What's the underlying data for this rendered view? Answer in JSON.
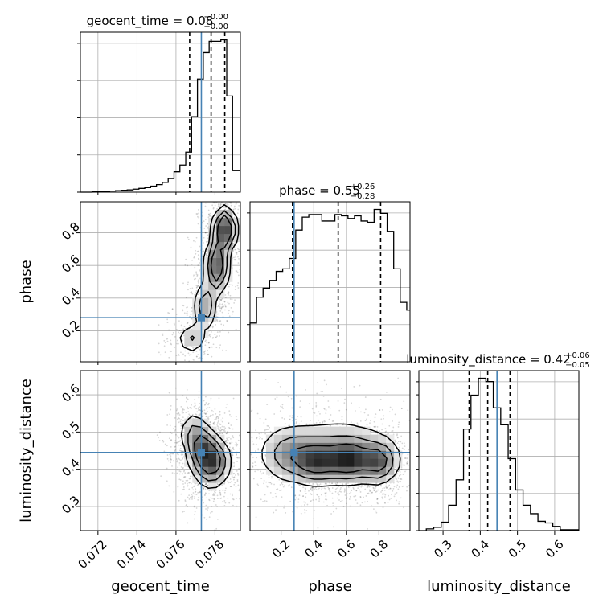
{
  "chart_data": {
    "type": "corner",
    "parameters": [
      "geocent_time",
      "phase",
      "luminosity_distance"
    ],
    "axis_labels": {
      "geocent_time": "geocent_time",
      "phase": "phase",
      "luminosity_distance": "luminosity_distance"
    },
    "ranges": {
      "geocent_time": [
        0.0711,
        0.0793
      ],
      "phase": [
        0.01,
        0.99
      ],
      "luminosity_distance": [
        0.235,
        0.665
      ]
    },
    "ticks": {
      "geocent_time": [
        "0.072",
        "0.074",
        "0.076",
        "0.078"
      ],
      "phase": [
        "0.2",
        "0.4",
        "0.6",
        "0.8"
      ],
      "luminosity_distance": [
        "0.3",
        "0.4",
        "0.5",
        "0.6"
      ]
    },
    "injection": {
      "geocent_time": 0.0773,
      "phase": 0.28,
      "luminosity_distance": 0.445
    },
    "colors": {
      "injection": "#4682b4",
      "histogram": "#000000",
      "grid": "#b0b0b0"
    },
    "grid": true,
    "titles": [
      {
        "param": "geocent_time",
        "label": "geocent_time = 0.08",
        "upper": "+0.00",
        "lower": "−0.00"
      },
      {
        "param": "phase",
        "label": "phase = 0.55",
        "upper": "+0.26",
        "lower": "−0.28"
      },
      {
        "param": "luminosity_distance",
        "label": "luminosity_distance = 0.42",
        "upper": "+0.06",
        "lower": "−0.05"
      }
    ],
    "quantiles": {
      "geocent_time": [
        0.0767,
        0.0778,
        0.0785
      ],
      "phase": [
        0.27,
        0.55,
        0.81
      ],
      "luminosity_distance": [
        0.37,
        0.42,
        0.48
      ]
    },
    "marginals": {
      "geocent_time": {
        "edges": [
          0.0711,
          0.0714,
          0.0717,
          0.072,
          0.0723,
          0.0726,
          0.0729,
          0.0732,
          0.0735,
          0.0738,
          0.0741,
          0.0744,
          0.0747,
          0.075,
          0.0753,
          0.0756,
          0.0759,
          0.0762,
          0.0765,
          0.0768,
          0.0771,
          0.0774,
          0.0777,
          0.078,
          0.0783,
          0.0786,
          0.0789,
          0.0793
        ],
        "counts": [
          0,
          0,
          1,
          1,
          2,
          3,
          4,
          5,
          6,
          8,
          10,
          12,
          16,
          20,
          26,
          36,
          54,
          72,
          106,
          200,
          300,
          370,
          400,
          400,
          404,
          255,
          57
        ]
      },
      "phase": {
        "edges": [
          0.01,
          0.05,
          0.09,
          0.13,
          0.17,
          0.21,
          0.25,
          0.29,
          0.33,
          0.37,
          0.41,
          0.45,
          0.49,
          0.53,
          0.57,
          0.61,
          0.65,
          0.69,
          0.73,
          0.77,
          0.81,
          0.85,
          0.89,
          0.93,
          0.97,
          0.99
        ],
        "counts": [
          30,
          50,
          57,
          63,
          70,
          72,
          80,
          102,
          112,
          114,
          114,
          109,
          109,
          114,
          113,
          111,
          113,
          109,
          108,
          118,
          115,
          101,
          72,
          46,
          40
        ]
      },
      "luminosity_distance": {
        "edges": [
          0.235,
          0.255,
          0.275,
          0.295,
          0.315,
          0.335,
          0.355,
          0.375,
          0.395,
          0.415,
          0.435,
          0.455,
          0.475,
          0.495,
          0.515,
          0.535,
          0.555,
          0.575,
          0.595,
          0.615,
          0.635,
          0.665
        ],
        "counts": [
          0,
          2,
          4,
          10,
          30,
          60,
          120,
          160,
          180,
          176,
          145,
          125,
          85,
          48,
          30,
          20,
          11,
          9,
          5,
          1,
          1
        ]
      }
    },
    "densities": {
      "geocent_time__phase": {
        "blobs": [
          [
            0.0785,
            0.82,
            0.0003,
            0.07,
            1.0
          ],
          [
            0.0781,
            0.6,
            0.0003,
            0.09,
            0.85
          ],
          [
            0.0775,
            0.35,
            0.0003,
            0.08,
            0.45
          ],
          [
            0.0768,
            0.15,
            0.0004,
            0.05,
            0.3
          ]
        ],
        "samples": 1800,
        "contour_levels": [
          0.12,
          0.28,
          0.5
        ]
      },
      "geocent_time__luminosity_distance": {
        "blobs": [
          [
            0.0778,
            0.42,
            0.0005,
            0.035,
            1.0
          ],
          [
            0.0773,
            0.46,
            0.0004,
            0.03,
            0.6
          ],
          [
            0.0769,
            0.5,
            0.0004,
            0.03,
            0.35
          ]
        ],
        "samples": 1800,
        "contour_levels": [
          0.12,
          0.3,
          0.55
        ]
      },
      "phase__luminosity_distance": {
        "blobs": [
          [
            0.42,
            0.42,
            0.08,
            0.03,
            0.85
          ],
          [
            0.62,
            0.425,
            0.08,
            0.03,
            1.0
          ],
          [
            0.8,
            0.42,
            0.06,
            0.03,
            0.9
          ],
          [
            0.25,
            0.44,
            0.1,
            0.04,
            0.55
          ],
          [
            0.55,
            0.45,
            0.2,
            0.05,
            0.45
          ]
        ],
        "samples": 2600,
        "contour_levels": [
          0.12,
          0.3,
          0.55
        ]
      }
    }
  }
}
